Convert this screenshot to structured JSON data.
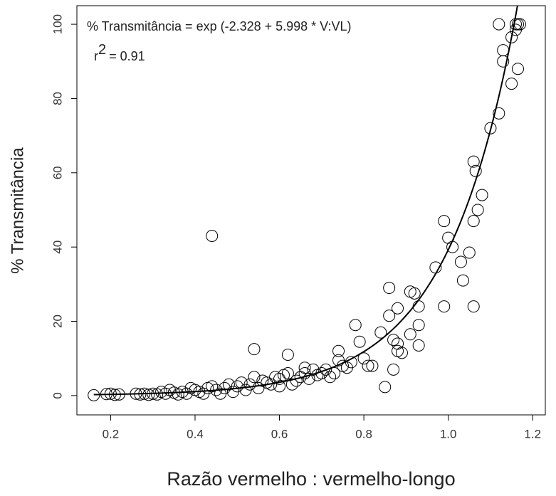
{
  "chart_data": {
    "type": "scatter",
    "xlabel": "Razão vermelho : vermelho-longo",
    "ylabel": "% Transmitância",
    "annotation": "% Transmitância = exp (-2.328 + 5.998 * V:VL)",
    "r_squared": {
      "prefix": "r",
      "sup": "2",
      "text": "= 0.91"
    },
    "fit": {
      "intercept": -2.328,
      "slope": 5.998
    },
    "xlim": [
      0.12,
      1.23
    ],
    "ylim": [
      -5.2,
      105
    ],
    "xticks": [
      0.2,
      0.4,
      0.6,
      0.8,
      {
        "value": 1.0,
        "label": "1.0"
      },
      1.2
    ],
    "yticks": [
      0,
      20,
      40,
      60,
      80,
      100
    ],
    "color": "#000000",
    "x": [
      0.44,
      0.54,
      0.62,
      0.78,
      0.86,
      0.85,
      0.87,
      0.99,
      0.99,
      1.0,
      1.06,
      1.06,
      1.065,
      1.06,
      1.07,
      1.08,
      1.05,
      1.03,
      1.035,
      0.97,
      1.01,
      1.1,
      1.12,
      1.13,
      1.13,
      1.15,
      1.15,
      1.12,
      1.16,
      1.165,
      1.17,
      1.16,
      1.165,
      0.91,
      0.92,
      0.93,
      0.93,
      0.93,
      0.91,
      0.88,
      0.86,
      0.88,
      0.87,
      0.88,
      0.89,
      0.84,
      0.82,
      0.81,
      0.8,
      0.79,
      0.74,
      0.74,
      0.75,
      0.73,
      0.76,
      0.72,
      0.7,
      0.68,
      0.66,
      0.65,
      0.64,
      0.6,
      0.6,
      0.58,
      0.56,
      0.55,
      0.53,
      0.52,
      0.5,
      0.49,
      0.47,
      0.46,
      0.45,
      0.43,
      0.42,
      0.41,
      0.4,
      0.38,
      0.37,
      0.36,
      0.35,
      0.33,
      0.32,
      0.31,
      0.3,
      0.29,
      0.28,
      0.27,
      0.26,
      0.22,
      0.21,
      0.2,
      0.19,
      0.16,
      0.62,
      0.63,
      0.67,
      0.69,
      0.71,
      0.54,
      0.57,
      0.48,
      0.44,
      0.39,
      0.34,
      0.51,
      0.59,
      0.61,
      0.66,
      0.77
    ],
    "values": [
      43,
      12.5,
      11,
      19,
      29,
      2.3,
      7,
      47,
      24,
      42.5,
      24,
      63,
      60.5,
      47,
      50,
      54,
      38.5,
      36,
      31,
      34.5,
      40,
      72,
      76,
      90,
      93,
      84,
      96.5,
      100,
      100,
      100,
      100,
      98.5,
      88,
      28,
      27.5,
      24,
      19,
      13.5,
      16.5,
      23.5,
      21.5,
      14,
      15,
      12,
      11.5,
      17,
      8,
      8,
      10,
      14.5,
      12,
      9.5,
      8,
      6,
      7.5,
      5,
      6,
      7,
      6,
      5,
      4,
      4.5,
      2.5,
      3,
      4,
      2,
      3,
      1.5,
      2.5,
      1,
      2,
      0.5,
      1.5,
      2,
      0.5,
      1,
      1.5,
      0.5,
      1,
      0.3,
      0.8,
      0.5,
      1,
      0.3,
      0.5,
      0.2,
      0.5,
      0.3,
      0.5,
      0.3,
      0.2,
      0.5,
      0.4,
      0.1,
      6,
      3,
      4.5,
      5.5,
      7,
      5,
      3.5,
      3,
      2.5,
      2,
      1.5,
      3.5,
      5,
      5.5,
      7.5,
      9
    ]
  }
}
